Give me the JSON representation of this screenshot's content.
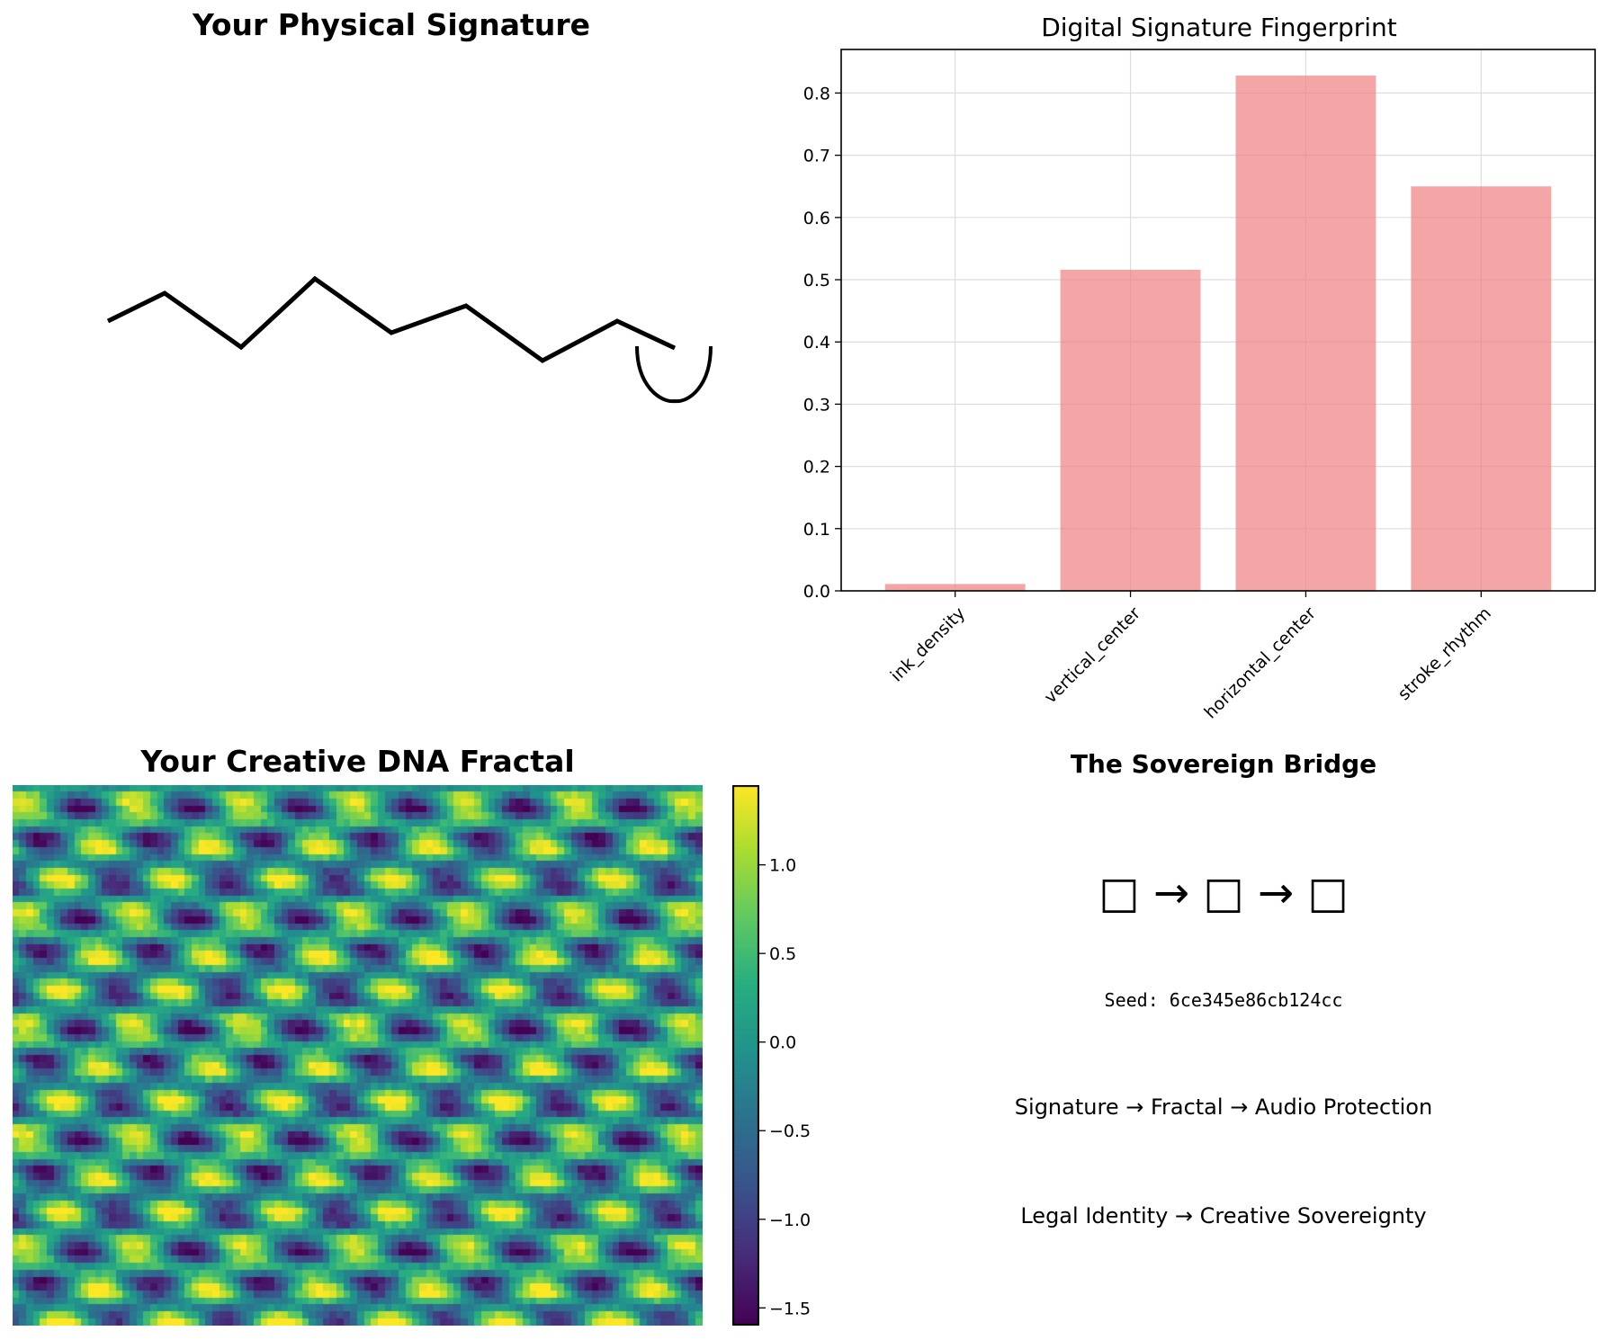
{
  "panels": {
    "signature": {
      "title": "Your Physical Signature"
    },
    "fingerprint": {
      "title": "Digital Signature Fingerprint"
    },
    "fractal": {
      "title": "Your Creative DNA Fractal",
      "colorbar_ticks": [
        "1.0",
        "0.5",
        "0.0",
        "−0.5",
        "−1.0",
        "−1.5"
      ],
      "colormap": "viridis"
    },
    "bridge": {
      "title": "The Sovereign Bridge",
      "icon_row": "□ → □ → □",
      "seed_line": "Seed: 6ce345e86cb124cc",
      "flow_line": "Signature → Fractal → Audio Protection",
      "identity_line": "Legal Identity → Creative Sovereignty"
    }
  },
  "chart_data": [
    {
      "type": "bar",
      "title": "Digital Signature Fingerprint",
      "categories": [
        "ink_density",
        "vertical_center",
        "horizontal_center",
        "stroke_rhythm"
      ],
      "values": [
        0.011,
        0.516,
        0.828,
        0.65
      ],
      "ylim": [
        0,
        0.87
      ],
      "yticks": [
        0.0,
        0.1,
        0.2,
        0.3,
        0.4,
        0.5,
        0.6,
        0.7,
        0.8
      ],
      "grid": true,
      "bar_color": "#f08080"
    },
    {
      "type": "heatmap",
      "title": "Your Creative DNA Fractal",
      "colormap": "viridis",
      "value_range": [
        -1.6,
        1.45
      ],
      "colorbar_ticks": [
        1.0,
        0.5,
        0.0,
        -0.5,
        -1.0,
        -1.5
      ]
    }
  ]
}
